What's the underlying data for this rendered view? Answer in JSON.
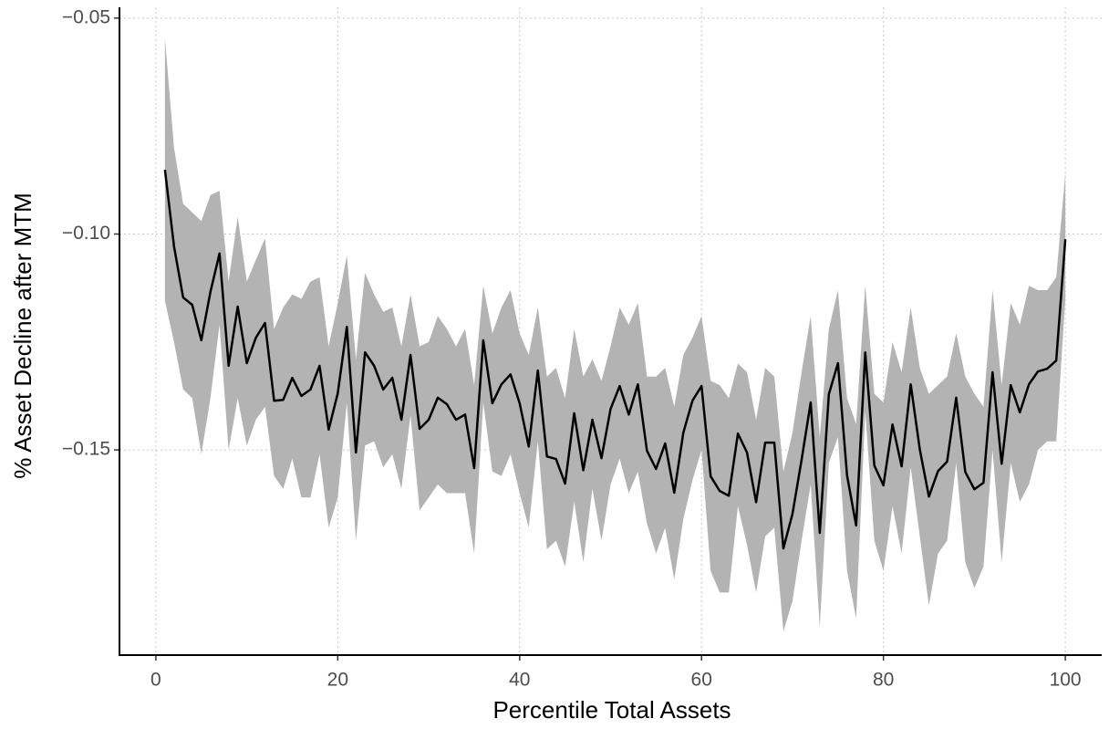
{
  "chart_data": {
    "type": "line",
    "xlabel": "Percentile Total Assets",
    "ylabel": "% Asset Decline after MTM",
    "x": [
      1,
      2,
      3,
      4,
      5,
      6,
      7,
      8,
      9,
      10,
      11,
      12,
      13,
      14,
      15,
      16,
      17,
      18,
      19,
      20,
      21,
      22,
      23,
      24,
      25,
      26,
      27,
      28,
      29,
      30,
      31,
      32,
      33,
      34,
      35,
      36,
      37,
      38,
      39,
      40,
      41,
      42,
      43,
      44,
      45,
      46,
      47,
      48,
      49,
      50,
      51,
      52,
      53,
      54,
      55,
      56,
      57,
      58,
      59,
      60,
      61,
      62,
      63,
      64,
      65,
      66,
      67,
      68,
      69,
      70,
      71,
      72,
      73,
      74,
      75,
      76,
      77,
      78,
      79,
      80,
      81,
      82,
      83,
      84,
      85,
      86,
      87,
      88,
      89,
      90,
      91,
      92,
      93,
      94,
      95,
      96,
      97,
      98,
      99,
      100
    ],
    "values": [
      -0.0851,
      -0.1029,
      -0.1147,
      -0.1164,
      -0.1246,
      -0.1134,
      -0.1045,
      -0.1305,
      -0.1168,
      -0.1299,
      -0.124,
      -0.1206,
      -0.1386,
      -0.1384,
      -0.1333,
      -0.1375,
      -0.136,
      -0.1305,
      -0.1453,
      -0.1369,
      -0.1215,
      -0.1506,
      -0.1274,
      -0.1305,
      -0.136,
      -0.1333,
      -0.143,
      -0.128,
      -0.1451,
      -0.143,
      -0.1379,
      -0.1394,
      -0.143,
      -0.1418,
      -0.1542,
      -0.1246,
      -0.1392,
      -0.1348,
      -0.1325,
      -0.1392,
      -0.1492,
      -0.1316,
      -0.1515,
      -0.1521,
      -0.1578,
      -0.1415,
      -0.1547,
      -0.143,
      -0.1519,
      -0.1405,
      -0.1352,
      -0.1418,
      -0.1348,
      -0.1502,
      -0.1544,
      -0.1485,
      -0.1599,
      -0.146,
      -0.1386,
      -0.1352,
      -0.1561,
      -0.1595,
      -0.1606,
      -0.1462,
      -0.1506,
      -0.1621,
      -0.1483,
      -0.1483,
      -0.1728,
      -0.1648,
      -0.1523,
      -0.139,
      -0.1692,
      -0.1371,
      -0.1299,
      -0.1559,
      -0.1675,
      -0.1274,
      -0.1536,
      -0.1582,
      -0.1441,
      -0.1538,
      -0.1348,
      -0.1499,
      -0.1608,
      -0.1549,
      -0.1527,
      -0.1379,
      -0.1551,
      -0.1591,
      -0.1576,
      -0.132,
      -0.1532,
      -0.135,
      -0.1413,
      -0.1348,
      -0.1318,
      -0.1312,
      -0.1293,
      -0.1012
    ],
    "color": "#000000",
    "band": {
      "color": "#b3b3b3",
      "upper": [
        -0.0547,
        -0.08,
        -0.093,
        -0.095,
        -0.097,
        -0.091,
        -0.09,
        -0.111,
        -0.096,
        -0.111,
        -0.106,
        -0.101,
        -0.122,
        -0.117,
        -0.114,
        -0.115,
        -0.111,
        -0.11,
        -0.126,
        -0.116,
        -0.105,
        -0.129,
        -0.109,
        -0.114,
        -0.118,
        -0.117,
        -0.126,
        -0.114,
        -0.126,
        -0.125,
        -0.119,
        -0.122,
        -0.126,
        -0.122,
        -0.135,
        -0.112,
        -0.123,
        -0.117,
        -0.113,
        -0.123,
        -0.128,
        -0.117,
        -0.133,
        -0.131,
        -0.138,
        -0.122,
        -0.133,
        -0.129,
        -0.134,
        -0.126,
        -0.117,
        -0.121,
        -0.116,
        -0.133,
        -0.133,
        -0.131,
        -0.14,
        -0.128,
        -0.124,
        -0.119,
        -0.134,
        -0.135,
        -0.138,
        -0.13,
        -0.132,
        -0.143,
        -0.131,
        -0.133,
        -0.155,
        -0.146,
        -0.132,
        -0.119,
        -0.147,
        -0.122,
        -0.113,
        -0.138,
        -0.144,
        -0.112,
        -0.137,
        -0.139,
        -0.125,
        -0.132,
        -0.117,
        -0.131,
        -0.137,
        -0.135,
        -0.133,
        -0.123,
        -0.133,
        -0.137,
        -0.14,
        -0.113,
        -0.135,
        -0.116,
        -0.121,
        -0.112,
        -0.113,
        -0.113,
        -0.11,
        -0.086
      ],
      "lower": [
        -0.1155,
        -0.125,
        -0.136,
        -0.138,
        -0.151,
        -0.138,
        -0.121,
        -0.15,
        -0.138,
        -0.149,
        -0.143,
        -0.14,
        -0.156,
        -0.159,
        -0.152,
        -0.161,
        -0.161,
        -0.151,
        -0.168,
        -0.161,
        -0.139,
        -0.171,
        -0.149,
        -0.148,
        -0.154,
        -0.151,
        -0.159,
        -0.142,
        -0.164,
        -0.161,
        -0.158,
        -0.16,
        -0.16,
        -0.16,
        -0.174,
        -0.139,
        -0.155,
        -0.156,
        -0.151,
        -0.16,
        -0.168,
        -0.148,
        -0.173,
        -0.171,
        -0.177,
        -0.162,
        -0.176,
        -0.159,
        -0.171,
        -0.158,
        -0.152,
        -0.16,
        -0.155,
        -0.167,
        -0.174,
        -0.168,
        -0.18,
        -0.166,
        -0.157,
        -0.15,
        -0.178,
        -0.183,
        -0.183,
        -0.163,
        -0.172,
        -0.183,
        -0.17,
        -0.168,
        -0.192,
        -0.185,
        -0.171,
        -0.158,
        -0.191,
        -0.153,
        -0.147,
        -0.178,
        -0.189,
        -0.141,
        -0.171,
        -0.178,
        -0.163,
        -0.174,
        -0.154,
        -0.17,
        -0.186,
        -0.174,
        -0.171,
        -0.153,
        -0.176,
        -0.182,
        -0.177,
        -0.15,
        -0.176,
        -0.153,
        -0.162,
        -0.158,
        -0.15,
        -0.148,
        -0.148,
        -0.115
      ]
    },
    "xlim": [
      -4,
      104
    ],
    "ylim": [
      -0.1975,
      -0.0475
    ],
    "xticks": [
      0,
      20,
      40,
      60,
      80,
      100
    ],
    "yticks": [
      {
        "value": -0.05,
        "label": "−0.05"
      },
      {
        "value": -0.1,
        "label": "−0.10"
      },
      {
        "value": -0.15,
        "label": "−0.15"
      }
    ],
    "grid": true
  }
}
